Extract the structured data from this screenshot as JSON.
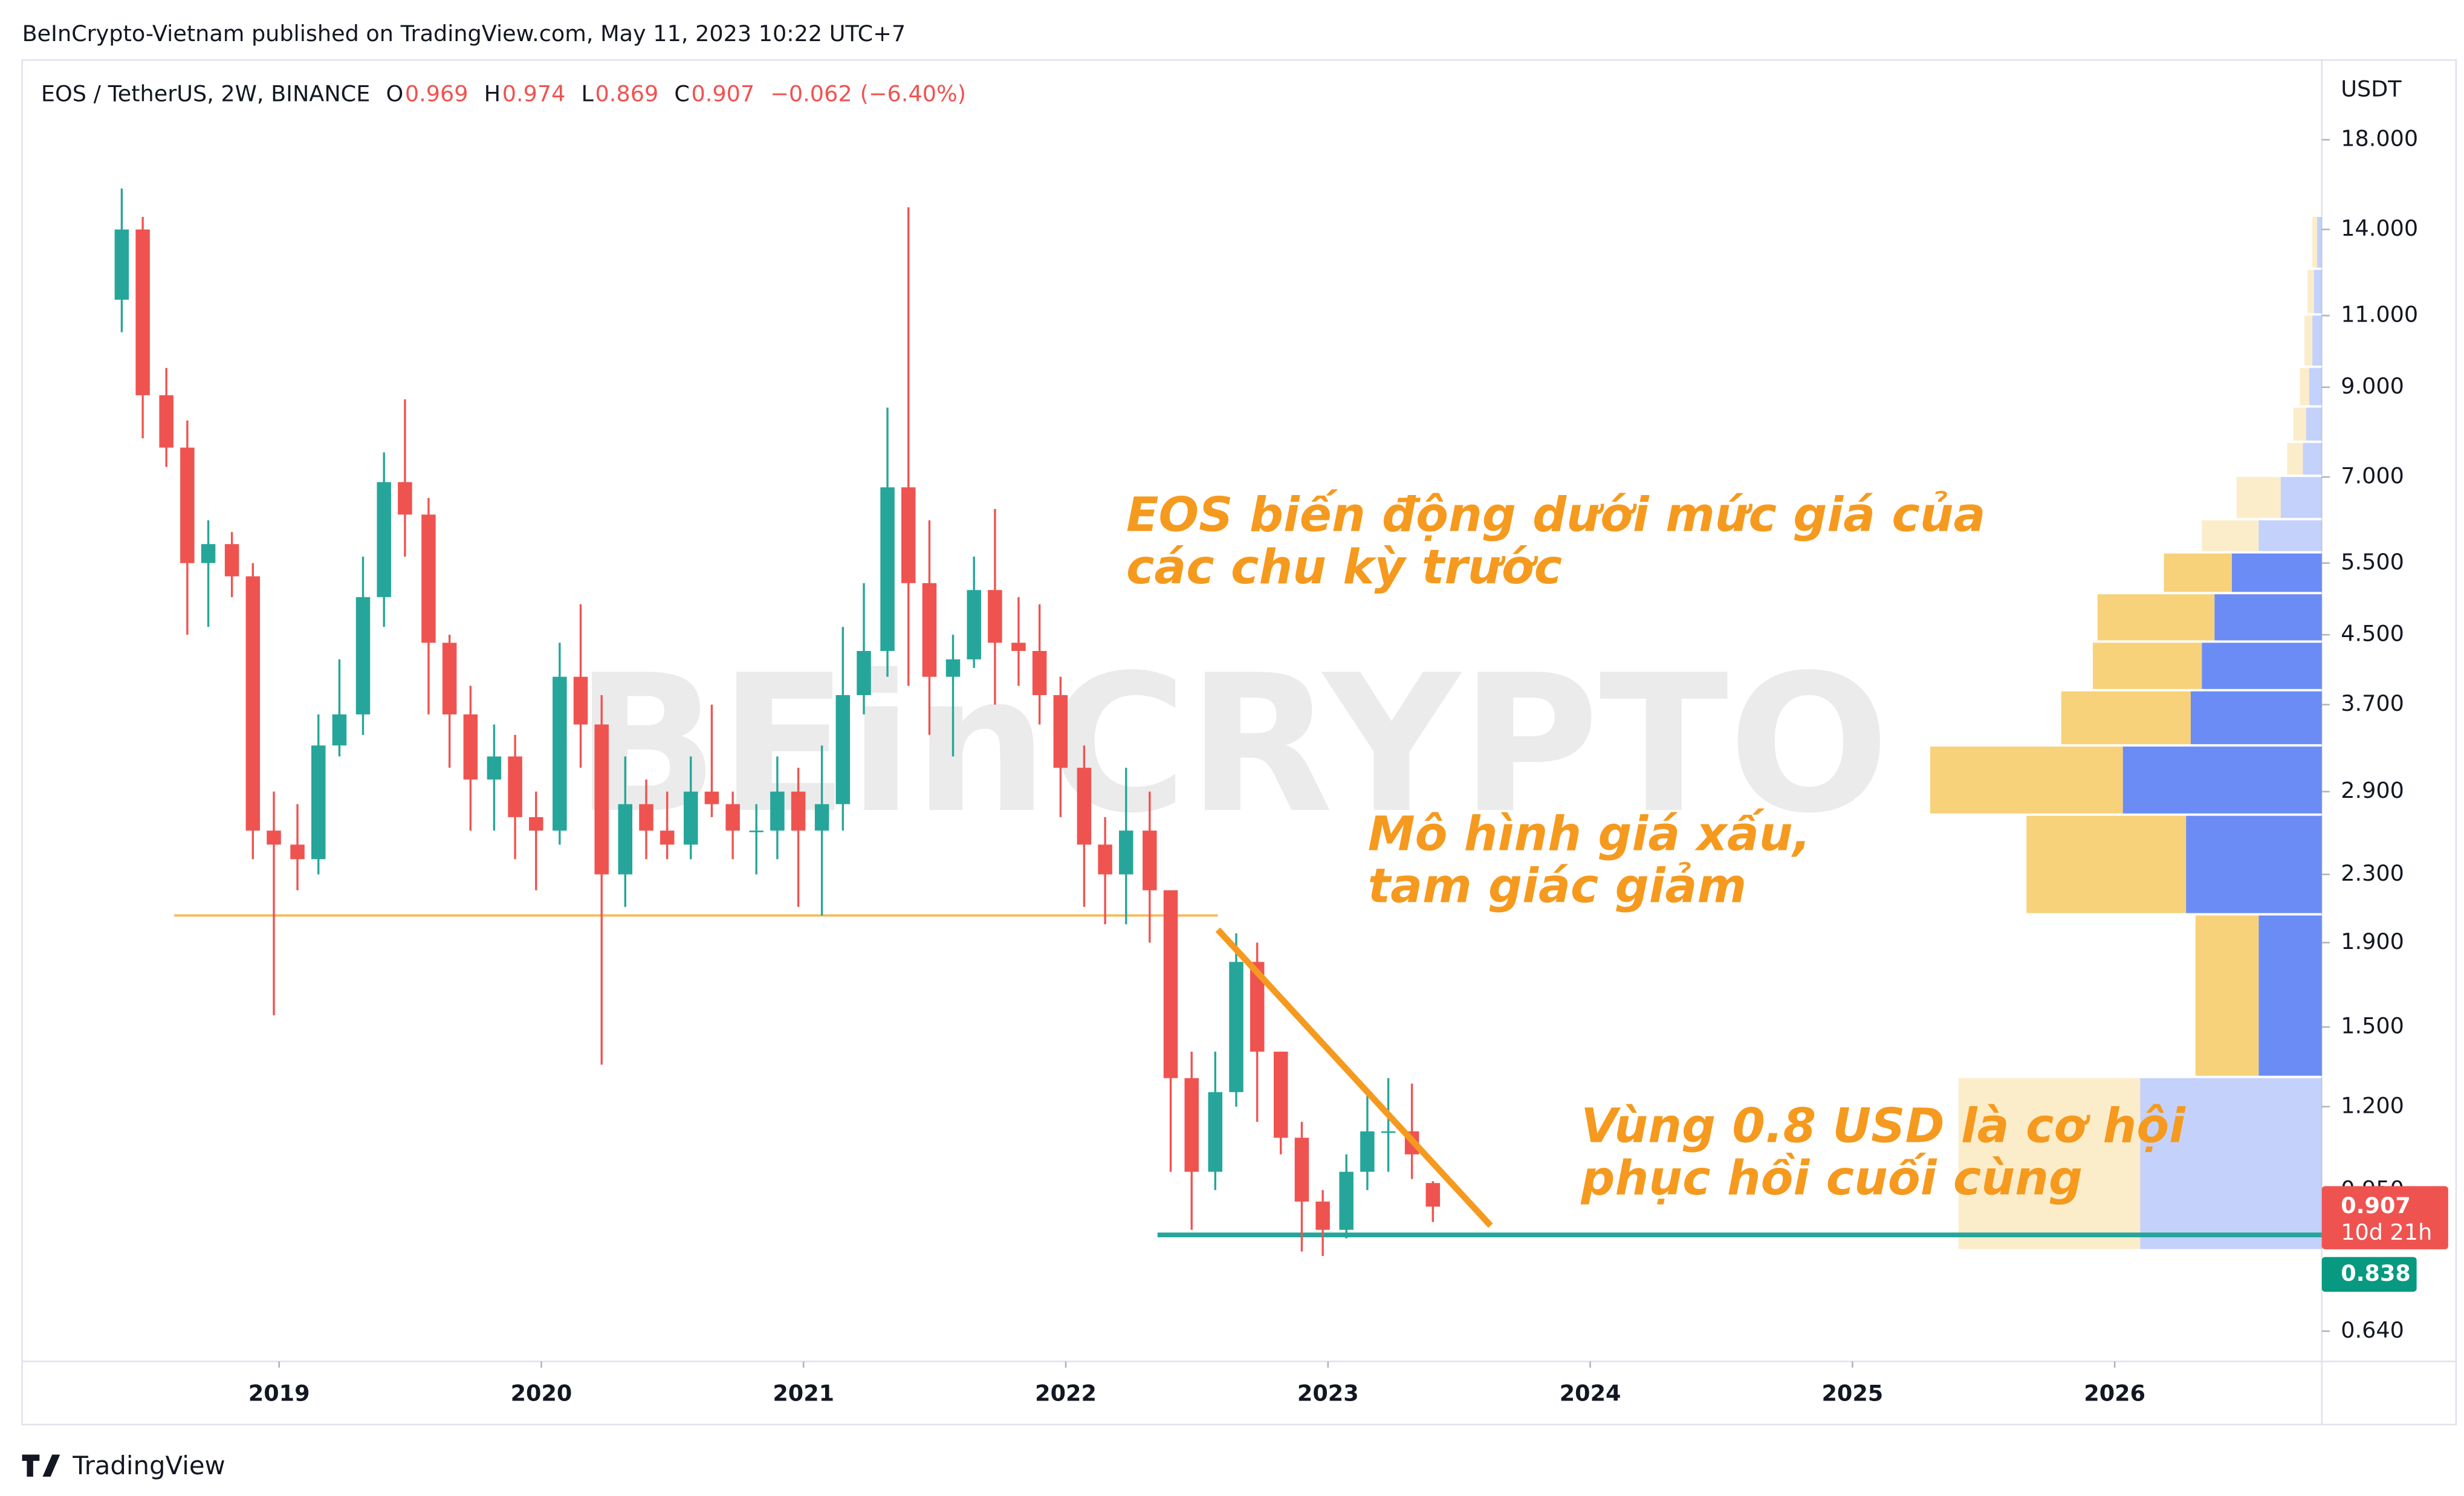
{
  "header": "BeInCrypto-Vietnam published on TradingView.com, May 11, 2023 10:22 UTC+7",
  "footer": "TradingView",
  "chart_data": {
    "type": "candlestick",
    "symbol": "EOS / TetherUS, 2W, BINANCE",
    "ohlc_legend": [
      {
        "label": "O",
        "value": 0.969
      },
      {
        "label": "H",
        "value": 0.974
      },
      {
        "label": "L",
        "value": 0.869
      },
      {
        "label": "C",
        "value": 0.907
      }
    ],
    "change": {
      "value": -0.062,
      "label": "−0.062"
    },
    "change_pct": {
      "value": -6.4,
      "label": "(−6.40%)"
    },
    "currency": "USDT",
    "watermark": "BEinCRYPTO",
    "log_scale": true,
    "up_color": "#26a69a",
    "down_color": "#ef5350",
    "x": [
      2018.4,
      2018.48,
      2018.57,
      2018.65,
      2018.73,
      2018.82,
      2018.9,
      2018.98,
      2019.07,
      2019.15,
      2019.23,
      2019.32,
      2019.4,
      2019.48,
      2019.57,
      2019.65,
      2019.73,
      2019.82,
      2019.9,
      2019.98,
      2020.07,
      2020.15,
      2020.23,
      2020.32,
      2020.4,
      2020.48,
      2020.57,
      2020.65,
      2020.73,
      2020.82,
      2020.9,
      2020.98,
      2021.07,
      2021.15,
      2021.23,
      2021.32,
      2021.4,
      2021.48,
      2021.57,
      2021.65,
      2021.73,
      2021.82,
      2021.9,
      2021.98,
      2022.07,
      2022.15,
      2022.23,
      2022.32,
      2022.4,
      2022.48,
      2022.57,
      2022.65,
      2022.73,
      2022.82,
      2022.9,
      2022.98,
      2023.07,
      2023.15,
      2023.23,
      2023.32,
      2023.4
    ],
    "open": [
      11.5,
      14.0,
      8.8,
      7.6,
      5.5,
      5.8,
      5.3,
      2.6,
      2.5,
      2.4,
      3.3,
      3.6,
      5.0,
      6.9,
      6.3,
      4.4,
      3.6,
      3.0,
      3.2,
      2.7,
      2.6,
      4.0,
      3.5,
      2.3,
      2.8,
      2.6,
      2.5,
      2.9,
      2.8,
      2.6,
      2.6,
      2.9,
      2.6,
      2.8,
      3.8,
      4.3,
      6.8,
      5.2,
      4.0,
      4.2,
      5.1,
      4.4,
      4.3,
      3.8,
      3.1,
      2.5,
      2.3,
      2.6,
      2.2,
      1.3,
      1.0,
      1.25,
      1.8,
      1.4,
      1.1,
      0.92,
      0.85,
      1.0,
      1.12,
      1.12,
      0.969
    ],
    "high": [
      15.7,
      14.5,
      9.5,
      8.2,
      6.2,
      6.0,
      5.5,
      2.9,
      2.8,
      3.6,
      4.2,
      5.6,
      7.5,
      8.7,
      6.6,
      4.5,
      3.9,
      3.5,
      3.4,
      2.9,
      4.4,
      4.9,
      3.8,
      3.2,
      3.0,
      2.9,
      3.2,
      3.7,
      2.9,
      2.8,
      3.2,
      3.1,
      3.3,
      4.6,
      5.2,
      8.5,
      14.9,
      6.2,
      4.5,
      5.6,
      6.4,
      5.0,
      4.9,
      4.0,
      3.3,
      2.7,
      3.1,
      2.9,
      2.2,
      1.4,
      1.4,
      1.95,
      1.9,
      1.4,
      1.15,
      0.95,
      1.05,
      1.25,
      1.3,
      1.28,
      0.974
    ],
    "low": [
      10.5,
      7.8,
      7.2,
      4.5,
      4.6,
      5.0,
      2.4,
      1.55,
      2.2,
      2.3,
      3.2,
      3.4,
      4.6,
      5.6,
      3.6,
      3.1,
      2.6,
      2.6,
      2.4,
      2.2,
      2.5,
      3.1,
      1.35,
      2.1,
      2.4,
      2.4,
      2.4,
      2.7,
      2.4,
      2.3,
      2.4,
      2.1,
      2.05,
      2.6,
      3.6,
      4.0,
      3.9,
      3.4,
      3.2,
      4.1,
      3.7,
      3.9,
      3.5,
      2.7,
      2.1,
      2.0,
      2.0,
      1.9,
      1.0,
      0.85,
      0.95,
      1.2,
      1.15,
      1.05,
      0.8,
      0.79,
      0.83,
      0.95,
      1.0,
      0.98,
      0.869
    ],
    "close": [
      14.0,
      8.8,
      7.6,
      5.5,
      5.8,
      5.3,
      2.6,
      2.5,
      2.4,
      3.3,
      3.6,
      5.0,
      6.9,
      6.3,
      4.4,
      3.6,
      3.0,
      3.2,
      2.7,
      2.6,
      4.0,
      3.5,
      2.3,
      2.8,
      2.6,
      2.5,
      2.9,
      2.8,
      2.6,
      2.6,
      2.9,
      2.6,
      2.8,
      3.8,
      4.3,
      6.8,
      5.2,
      4.0,
      4.2,
      5.1,
      4.4,
      4.3,
      3.8,
      3.1,
      2.5,
      2.3,
      2.6,
      2.2,
      1.3,
      1.0,
      1.25,
      1.8,
      1.4,
      1.1,
      0.92,
      0.85,
      1.0,
      1.12,
      1.12,
      1.05,
      0.907
    ],
    "countdown": "10d 21h",
    "xlim": [
      2018.02,
      2026.79
    ],
    "xticks": [
      2019,
      2020,
      2021,
      2022,
      2023,
      2024,
      2025,
      2026
    ],
    "ylim": [
      0.588,
      22.5
    ],
    "yticks": [
      {
        "value": 18,
        "label": "18.000"
      },
      {
        "value": 14,
        "label": "14.000"
      },
      {
        "value": 11,
        "label": "11.000"
      },
      {
        "value": 9,
        "label": "9.000"
      },
      {
        "value": 7,
        "label": "7.000"
      },
      {
        "value": 5.5,
        "label": "5.500"
      },
      {
        "value": 4.5,
        "label": "4.500"
      },
      {
        "value": 3.7,
        "label": "3.700"
      },
      {
        "value": 2.9,
        "label": "2.900"
      },
      {
        "value": 2.3,
        "label": "2.300"
      },
      {
        "value": 1.9,
        "label": "1.900"
      },
      {
        "value": 1.5,
        "label": "1.500"
      },
      {
        "value": 1.2,
        "label": "1.200"
      },
      {
        "value": 0.95,
        "label": "0.950"
      },
      {
        "value": 0.64,
        "label": "0.640"
      }
    ],
    "levels": [
      {
        "value": 2.05,
        "x": [
          2018.6,
          2022.58
        ],
        "color": "#f7b955"
      },
      {
        "value": 0.838,
        "x": [
          2022.35,
          2026.79
        ],
        "color": "#26a69a"
      }
    ],
    "trend_line": {
      "x": [
        2022.58,
        2023.62
      ],
      "y": [
        1.97,
        0.86
      ],
      "color": "#f59a1e"
    },
    "volume_profile": {
      "up_color": "#f7d27a",
      "down_color": "#6b8cf5",
      "value_area": [
        1.3,
        5.65
      ],
      "rows": [
        [
          0.8,
          1.3,
          115,
          115
        ],
        [
          1.3,
          2.05,
          40,
          40
        ],
        [
          2.05,
          2.71,
          101,
          86
        ],
        [
          2.71,
          3.29,
          122,
          126
        ],
        [
          3.29,
          3.84,
          82,
          83
        ],
        [
          3.84,
          4.4,
          69,
          76
        ],
        [
          4.4,
          5.04,
          74,
          68
        ],
        [
          5.04,
          5.65,
          43,
          57
        ],
        [
          5.65,
          6.2,
          36,
          40
        ],
        [
          6.2,
          7.0,
          28,
          26
        ],
        [
          7.0,
          7.7,
          10,
          12
        ],
        [
          7.7,
          8.5,
          8,
          10
        ],
        [
          8.5,
          9.5,
          6,
          8
        ],
        [
          9.5,
          11,
          5,
          6
        ],
        [
          11,
          12.5,
          4,
          5
        ],
        [
          12.5,
          14.5,
          3,
          3
        ]
      ]
    },
    "annotations": [
      [
        "EOS biến động dưới mức giá của",
        "các chu kỳ trước"
      ],
      [
        "Mô hình giá xấu,",
        "tam giác giảm"
      ],
      [
        "Vùng 0.8 USD là cơ hội",
        "phục hồi cuối cùng"
      ]
    ]
  }
}
